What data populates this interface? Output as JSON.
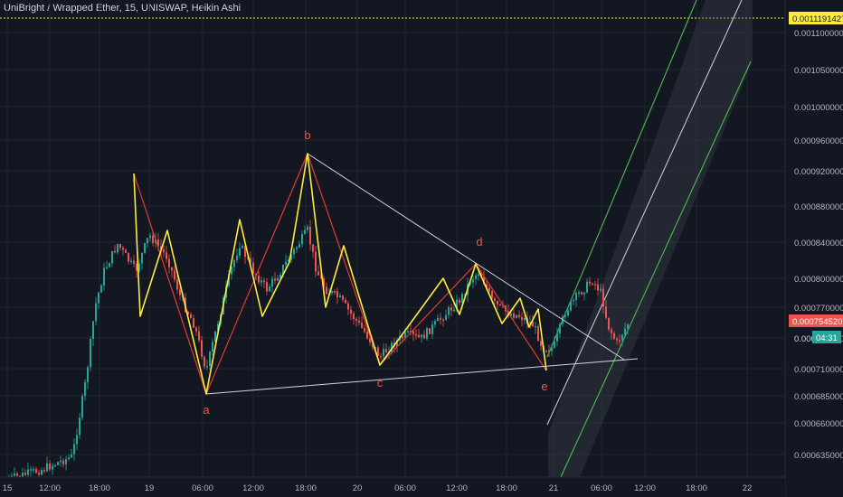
{
  "header": {
    "title": "UniBright / Wrapped Ether, 15, UNISWAP, Heikin Ashi"
  },
  "colors": {
    "background": "#131722",
    "grid": "#1f2433",
    "bull": "#26a69a",
    "bear": "#ef5350",
    "pattern_yellow": "#ffeb3b",
    "pattern_red": "#e53935",
    "trendline_white": "#d1d4dc",
    "channel_green": "#4caf50",
    "label_red": "#ef5350",
    "target_line": "#ffeb3b"
  },
  "chart_data": {
    "type": "candlestick",
    "y_ticks": [
      "0.0011000000",
      "0.0010500000",
      "0.0010000000",
      "0.0009600000",
      "0.0009200000",
      "0.0008800000",
      "0.0008400000",
      "0.0008000000",
      "0.0007700000",
      "0.0007400000",
      "0.0007100000",
      "0.0006850000",
      "0.0006600000",
      "0.0006350000"
    ],
    "x_ticks": [
      "15",
      "12:00",
      "18:00",
      "19",
      "06:00",
      "12:00",
      "18:00",
      "20",
      "06:00",
      "12:00",
      "18:00",
      "21",
      "06:00",
      "12:00",
      "18:00",
      "22"
    ],
    "price_labels": {
      "target": "0.0011191427",
      "current": "0.0007545200",
      "countdown_price": "0.00074",
      "countdown": "04:31"
    },
    "wave_labels": [
      "a",
      "b",
      "c",
      "d",
      "e"
    ]
  }
}
